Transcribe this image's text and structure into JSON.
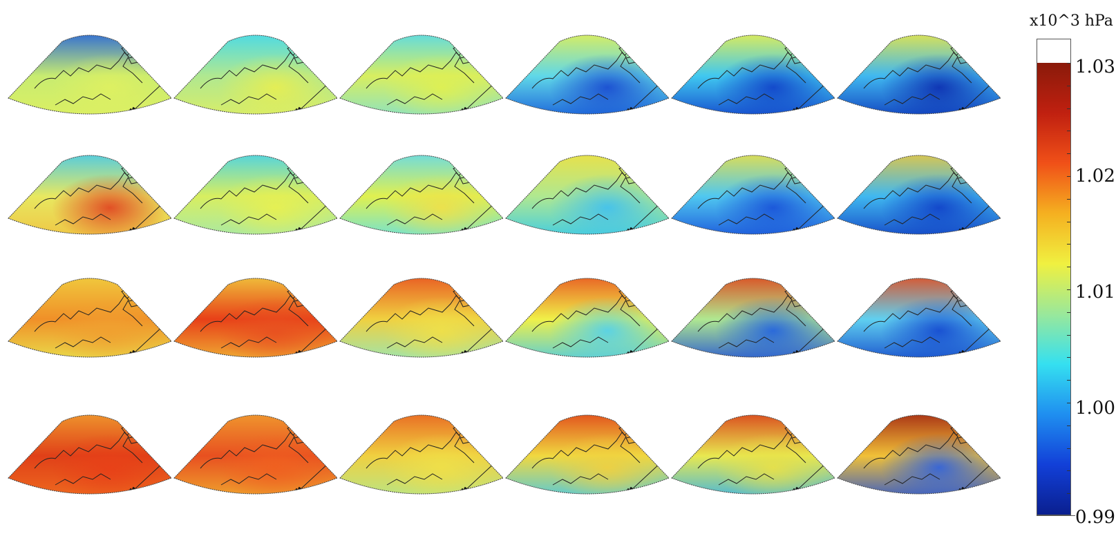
{
  "colorbar": {
    "units": "x10^3 hPa",
    "ticks": [
      "1.03",
      "1.02",
      "1.01",
      "1.00",
      "0.990"
    ],
    "min": 0.99,
    "max": 1.03,
    "stops": [
      "#0a1f8f",
      "#1240d8",
      "#1f8ff0",
      "#35e0f0",
      "#9ae89a",
      "#f0f040",
      "#f5b020",
      "#f05018",
      "#c02010",
      "#8a1a0a"
    ]
  },
  "grid": {
    "rows": 4,
    "cols": 6
  },
  "panels": [
    {
      "north": "#1f5fe0",
      "mid": "#c8ec70",
      "south": "#dff060",
      "hot": "#dff060"
    },
    {
      "north": "#40d8f0",
      "mid": "#b0e890",
      "south": "#e0ee60",
      "hot": "#e8ee50"
    },
    {
      "north": "#50d8f0",
      "mid": "#d8ee60",
      "south": "#80e0d0",
      "hot": "#e0f050"
    },
    {
      "north": "#e8f050",
      "mid": "#60d8e8",
      "south": "#1050d8",
      "hot": "#1848d0"
    },
    {
      "north": "#f0f048",
      "mid": "#40c8f0",
      "south": "#0e38c8",
      "hot": "#1040c8"
    },
    {
      "north": "#f0e840",
      "mid": "#40b8f0",
      "south": "#0a30b8",
      "hot": "#0c2cb0"
    },
    {
      "north": "#40c8f0",
      "mid": "#e8e860",
      "south": "#f0c040",
      "hot": "#e04020"
    },
    {
      "north": "#40d0f0",
      "mid": "#d8ee60",
      "south": "#a0e8b0",
      "hot": "#e8f050"
    },
    {
      "north": "#60d8f0",
      "mid": "#e0f050",
      "south": "#60e0e8",
      "hot": "#f0e048"
    },
    {
      "north": "#f0e040",
      "mid": "#b0e890",
      "south": "#30c8f0",
      "hot": "#40c0f0"
    },
    {
      "north": "#f0e040",
      "mid": "#50c8f0",
      "south": "#1448d8",
      "hot": "#1850d8"
    },
    {
      "north": "#f0c838",
      "mid": "#40b8f0",
      "south": "#0e38c0",
      "hot": "#1040c8"
    },
    {
      "north": "#f0d040",
      "mid": "#f09028",
      "south": "#e8e850",
      "hot": "#f0a030"
    },
    {
      "north": "#f0d040",
      "mid": "#e84018",
      "south": "#f0c038",
      "hot": "#e85020"
    },
    {
      "north": "#e85020",
      "mid": "#f0d040",
      "south": "#90e8c0",
      "hot": "#f0e048"
    },
    {
      "north": "#e85020",
      "mid": "#f0f048",
      "south": "#40c8f0",
      "hot": "#50d0f0"
    },
    {
      "north": "#e04018",
      "mid": "#b0e890",
      "south": "#1848d8",
      "hot": "#2060e0"
    },
    {
      "north": "#e84818",
      "mid": "#60d0f0",
      "south": "#1040c8",
      "hot": "#1448d0"
    },
    {
      "north": "#f0a030",
      "mid": "#e04018",
      "south": "#f07020",
      "hot": "#e84018"
    },
    {
      "north": "#f0a030",
      "mid": "#e85020",
      "south": "#f0b030",
      "hot": "#f06020"
    },
    {
      "north": "#e86020",
      "mid": "#f0d040",
      "south": "#b0e890",
      "hot": "#f0e048"
    },
    {
      "north": "#e04018",
      "mid": "#f0d840",
      "south": "#40c8f0",
      "hot": "#f0d040"
    },
    {
      "north": "#d83818",
      "mid": "#e8e850",
      "south": "#30b0f0",
      "hot": "#e8e048"
    },
    {
      "north": "#a02010",
      "mid": "#f0c038",
      "south": "#2050d8",
      "hot": "#2c60e0"
    }
  ]
}
